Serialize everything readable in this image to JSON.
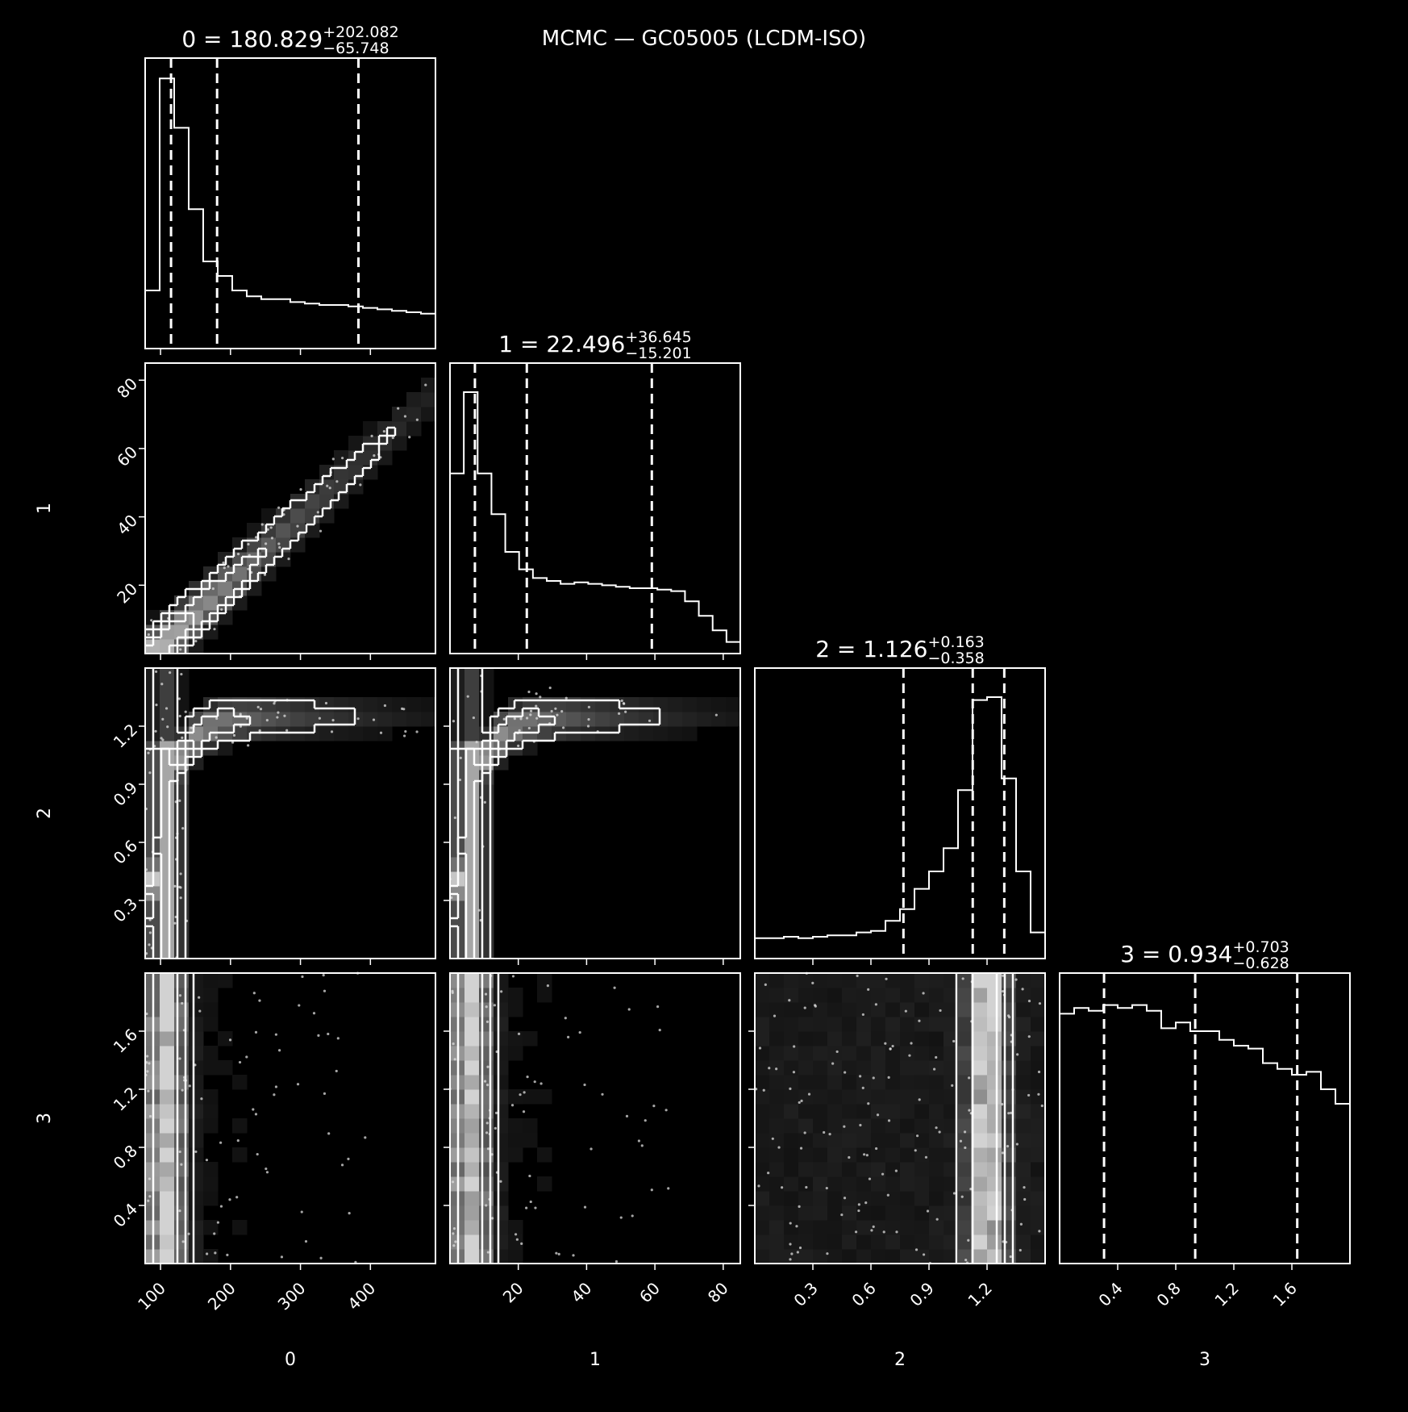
{
  "title": "MCMC — GC05005 (LCDM-ISO)",
  "colors": {
    "background": "#000000",
    "foreground": "#ffffff",
    "density_low": "#000000",
    "density_high": "#ffffff"
  },
  "chart_data": {
    "type": "corner",
    "parameters": [
      {
        "label": "0",
        "median": "180.829",
        "plus": "+202.082",
        "minus": "−65.748",
        "range": [
          78,
          493
        ],
        "ticks": [
          100,
          200,
          300,
          400
        ],
        "tick_labels": [
          "100",
          "200",
          "300",
          "400"
        ],
        "quantiles": [
          115,
          180.829,
          382.9
        ],
        "hist": [
          0.2,
          0.93,
          0.76,
          0.48,
          0.3,
          0.25,
          0.2,
          0.18,
          0.17,
          0.17,
          0.16,
          0.155,
          0.15,
          0.15,
          0.145,
          0.14,
          0.135,
          0.13,
          0.125,
          0.12
        ]
      },
      {
        "label": "1",
        "median": "22.496",
        "plus": "+36.645",
        "minus": "−15.201",
        "range": [
          0,
          85
        ],
        "ticks": [
          20,
          40,
          60,
          80
        ],
        "tick_labels": [
          "20",
          "40",
          "60",
          "80"
        ],
        "quantiles": [
          7.3,
          22.496,
          59.1
        ],
        "hist": [
          0.62,
          0.9,
          0.62,
          0.48,
          0.35,
          0.29,
          0.26,
          0.25,
          0.24,
          0.245,
          0.24,
          0.235,
          0.23,
          0.225,
          0.225,
          0.22,
          0.215,
          0.18,
          0.13,
          0.08,
          0.04
        ]
      },
      {
        "label": "2",
        "median": "1.126",
        "plus": "+0.163",
        "minus": "−0.358",
        "range": [
          0,
          1.5
        ],
        "ticks": [
          0.3,
          0.6,
          0.9,
          1.2
        ],
        "tick_labels": [
          "0.3",
          "0.6",
          "0.9",
          "1.2"
        ],
        "quantiles": [
          0.768,
          1.126,
          1.289
        ],
        "hist": [
          0.07,
          0.07,
          0.075,
          0.07,
          0.075,
          0.08,
          0.08,
          0.09,
          0.095,
          0.13,
          0.17,
          0.24,
          0.3,
          0.38,
          0.58,
          0.89,
          0.9,
          0.62,
          0.3,
          0.09
        ]
      },
      {
        "label": "3",
        "median": "0.934",
        "plus": "+0.703",
        "minus": "−0.628",
        "range": [
          0,
          2.0
        ],
        "ticks": [
          0.4,
          0.8,
          1.2,
          1.6
        ],
        "tick_labels": [
          "0.4",
          "0.8",
          "1.2",
          "1.6"
        ],
        "quantiles": [
          0.306,
          0.934,
          1.637
        ],
        "hist": [
          0.86,
          0.88,
          0.87,
          0.89,
          0.88,
          0.89,
          0.87,
          0.81,
          0.83,
          0.8,
          0.8,
          0.77,
          0.75,
          0.74,
          0.69,
          0.67,
          0.65,
          0.66,
          0.6,
          0.55
        ]
      }
    ]
  }
}
